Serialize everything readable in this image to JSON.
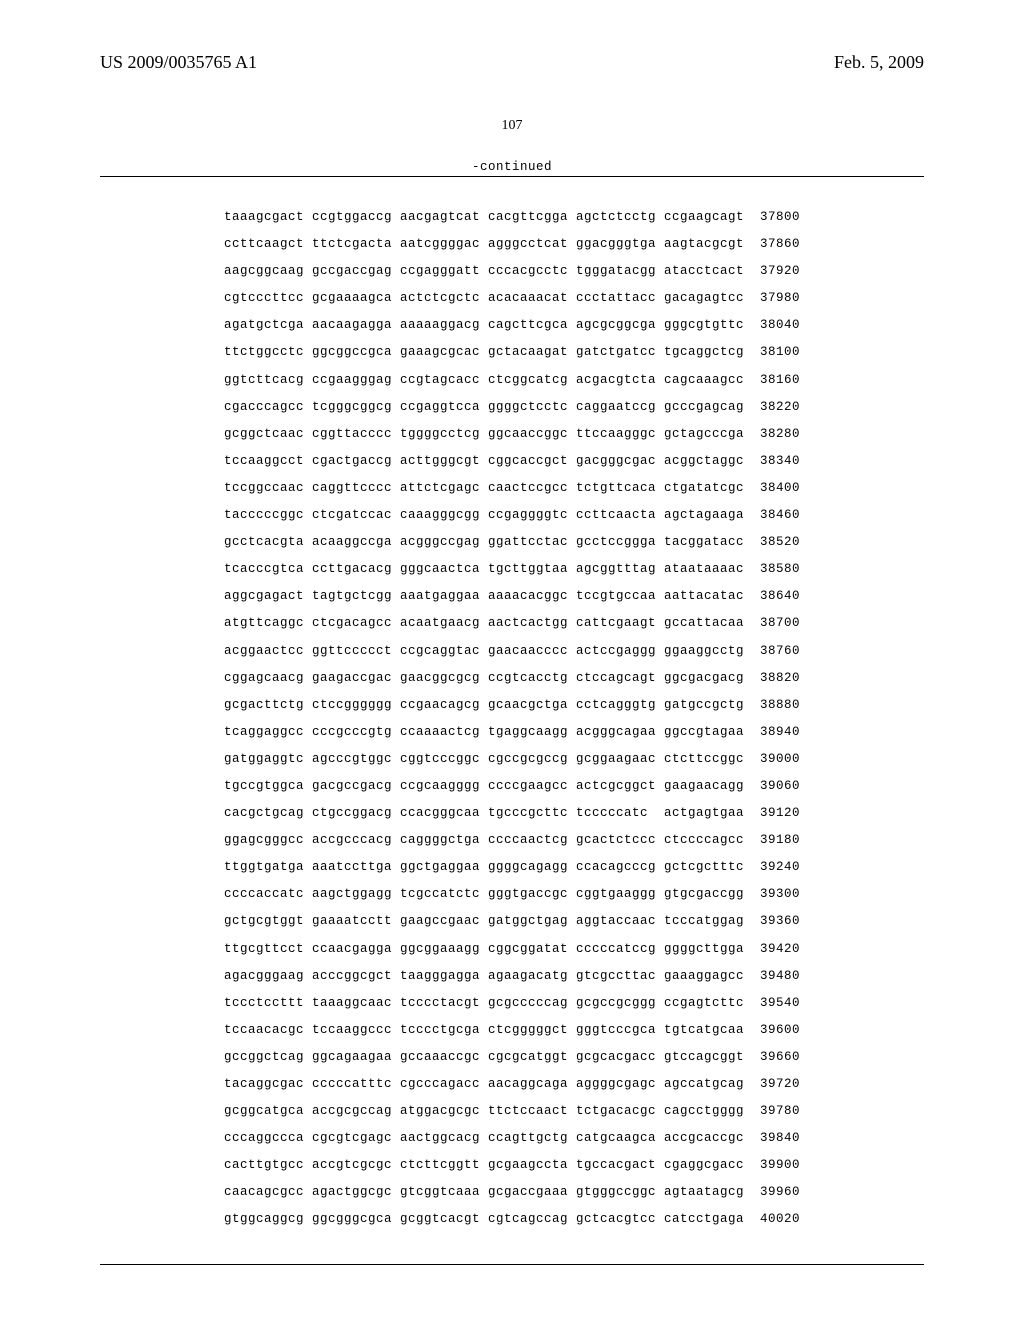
{
  "header": {
    "left": "US 2009/0035765 A1",
    "right": "Feb. 5, 2009"
  },
  "page_number": "107",
  "continued_label": "-continued",
  "sequence": {
    "font_family": "Courier New",
    "font_size_pt": 9,
    "color": "#000000",
    "lines": [
      {
        "groups": [
          "taaagcgact",
          "ccgtggaccg",
          "aacgagtcat",
          "cacgttcgga",
          "agctctcctg",
          "ccgaagcagt"
        ],
        "pos": "37800"
      },
      {
        "groups": [
          "ccttcaagct",
          "ttctcgacta",
          "aatcggggac",
          "agggcctcat",
          "ggacgggtga",
          "aagtacgcgt"
        ],
        "pos": "37860"
      },
      {
        "groups": [
          "aagcggcaag",
          "gccgaccgag",
          "ccgagggatt",
          "cccacgcctc",
          "tgggatacgg",
          "atacctcact"
        ],
        "pos": "37920"
      },
      {
        "groups": [
          "cgtcccttcc",
          "gcgaaaagca",
          "actctcgctc",
          "acacaaacat",
          "ccctattacc",
          "gacagagtcc"
        ],
        "pos": "37980"
      },
      {
        "groups": [
          "agatgctcga",
          "aacaagagga",
          "aaaaaggacg",
          "cagcttcgca",
          "agcgcggcga",
          "gggcgtgttc"
        ],
        "pos": "38040"
      },
      {
        "groups": [
          "ttctggcctc",
          "ggcggccgca",
          "gaaagcgcac",
          "gctacaagat",
          "gatctgatcc",
          "tgcaggctcg"
        ],
        "pos": "38100"
      },
      {
        "groups": [
          "ggtcttcacg",
          "ccgaagggag",
          "ccgtagcacc",
          "ctcggcatcg",
          "acgacgtcta",
          "cagcaaagcc"
        ],
        "pos": "38160"
      },
      {
        "groups": [
          "cgacccagcc",
          "tcgggcggcg",
          "ccgaggtcca",
          "ggggctcctc",
          "caggaatccg",
          "gcccgagcag"
        ],
        "pos": "38220"
      },
      {
        "groups": [
          "gcggctcaac",
          "cggttacccc",
          "tggggcctcg",
          "ggcaaccggc",
          "ttccaagggc",
          "gctagcccga"
        ],
        "pos": "38280"
      },
      {
        "groups": [
          "tccaaggcct",
          "cgactgaccg",
          "acttgggcgt",
          "cggcaccgct",
          "gacgggcgac",
          "acggctaggc"
        ],
        "pos": "38340"
      },
      {
        "groups": [
          "tccggccaac",
          "caggttcccc",
          "attctcgagc",
          "caactccgcc",
          "tctgttcaca",
          "ctgatatcgc"
        ],
        "pos": "38400"
      },
      {
        "groups": [
          "tacccccggc",
          "ctcgatccac",
          "caaagggcgg",
          "ccgaggggtc",
          "ccttcaacta",
          "agctagaaga"
        ],
        "pos": "38460"
      },
      {
        "groups": [
          "gcctcacgta",
          "acaaggccga",
          "acgggccgag",
          "ggattcctac",
          "gcctccggga",
          "tacggatacc"
        ],
        "pos": "38520"
      },
      {
        "groups": [
          "tcacccgtca",
          "ccttgacacg",
          "gggcaactca",
          "tgcttggtaa",
          "agcggtttag",
          "ataataaaac"
        ],
        "pos": "38580"
      },
      {
        "groups": [
          "aggcgagact",
          "tagtgctcgg",
          "aaatgaggaa",
          "aaaacacggc",
          "tccgtgccaa",
          "aattacatac"
        ],
        "pos": "38640"
      },
      {
        "groups": [
          "atgttcaggc",
          "ctcgacagcc",
          "acaatgaacg",
          "aactcactgg",
          "cattcgaagt",
          "gccattacaa"
        ],
        "pos": "38700"
      },
      {
        "groups": [
          "acggaactcc",
          "ggttccccct",
          "ccgcaggtac",
          "gaacaacccc",
          "actccgaggg",
          "ggaaggcctg"
        ],
        "pos": "38760"
      },
      {
        "groups": [
          "cggagcaacg",
          "gaagaccgac",
          "gaacggcgcg",
          "ccgtcacctg",
          "ctccagcagt",
          "ggcgacgacg"
        ],
        "pos": "38820"
      },
      {
        "groups": [
          "gcgacttctg",
          "ctccgggggg",
          "ccgaacagcg",
          "gcaacgctga",
          "cctcagggtg",
          "gatgccgctg"
        ],
        "pos": "38880"
      },
      {
        "groups": [
          "tcaggaggcc",
          "cccgcccgtg",
          "ccaaaactcg",
          "tgaggcaagg",
          "acgggcagaa",
          "ggccgtagaa"
        ],
        "pos": "38940"
      },
      {
        "groups": [
          "gatggaggtc",
          "agcccgtggc",
          "cggtcccggc",
          "cgccgcgccg",
          "gcggaagaac",
          "ctcttccggc"
        ],
        "pos": "39000"
      },
      {
        "groups": [
          "tgccgtggca",
          "gacgccgacg",
          "ccgcaagggg",
          "ccccgaagcc",
          "actcgcggct",
          "gaagaacagg"
        ],
        "pos": "39060"
      },
      {
        "groups": [
          "cacgctgcag",
          "ctgccggacg",
          "ccacgggcaa",
          "tgcccgcttc",
          "tcccccatc",
          "actgagtgaa"
        ],
        "pos": "39120"
      },
      {
        "groups": [
          "ggagcgggcc",
          "accgcccacg",
          "caggggctga",
          "ccccaactcg",
          "gcactctccc",
          "ctccccagcc"
        ],
        "pos": "39180"
      },
      {
        "groups": [
          "ttggtgatga",
          "aaatccttga",
          "ggctgaggaa",
          "ggggcagagg",
          "ccacagcccg",
          "gctcgctttc"
        ],
        "pos": "39240"
      },
      {
        "groups": [
          "ccccaccatc",
          "aagctggagg",
          "tcgccatctc",
          "gggtgaccgc",
          "cggtgaaggg",
          "gtgcgaccgg"
        ],
        "pos": "39300"
      },
      {
        "groups": [
          "gctgcgtggt",
          "gaaaatcctt",
          "gaagccgaac",
          "gatggctgag",
          "aggtaccaac",
          "tcccatggag"
        ],
        "pos": "39360"
      },
      {
        "groups": [
          "ttgcgttcct",
          "ccaacgagga",
          "ggcggaaagg",
          "cggcggatat",
          "cccccatccg",
          "ggggcttgga"
        ],
        "pos": "39420"
      },
      {
        "groups": [
          "agacgggaag",
          "acccggcgct",
          "taagggagga",
          "agaagacatg",
          "gtcgccttac",
          "gaaaggagcc"
        ],
        "pos": "39480"
      },
      {
        "groups": [
          "tccctccttt",
          "taaaggcaac",
          "tcccctacgt",
          "gcgcccccag",
          "gcgccgcggg",
          "ccgagtcttc"
        ],
        "pos": "39540"
      },
      {
        "groups": [
          "tccaacacgc",
          "tccaaggccc",
          "tcccctgcga",
          "ctcgggggct",
          "gggtcccgca",
          "tgtcatgcaa"
        ],
        "pos": "39600"
      },
      {
        "groups": [
          "gccggctcag",
          "ggcagaagaa",
          "gccaaaccgc",
          "cgcgcatggt",
          "gcgcacgacc",
          "gtccagcggt"
        ],
        "pos": "39660"
      },
      {
        "groups": [
          "tacaggcgac",
          "cccccatttc",
          "cgcccagacc",
          "aacaggcaga",
          "aggggcgagc",
          "agccatgcag"
        ],
        "pos": "39720"
      },
      {
        "groups": [
          "gcggcatgca",
          "accgcgccag",
          "atggacgcgc",
          "ttctccaact",
          "tctgacacgc",
          "cagcctgggg"
        ],
        "pos": "39780"
      },
      {
        "groups": [
          "cccaggccca",
          "cgcgtcgagc",
          "aactggcacg",
          "ccagttgctg",
          "catgcaagca",
          "accgcaccgc"
        ],
        "pos": "39840"
      },
      {
        "groups": [
          "cacttgtgcc",
          "accgtcgcgc",
          "ctcttcggtt",
          "gcgaagccta",
          "tgccacgact",
          "cgaggcgacc"
        ],
        "pos": "39900"
      },
      {
        "groups": [
          "caacagcgcc",
          "agactggcgc",
          "gtcggtcaaa",
          "gcgaccgaaa",
          "gtgggccggc",
          "agtaatagcg"
        ],
        "pos": "39960"
      },
      {
        "groups": [
          "gtggcaggcg",
          "ggcgggcgca",
          "gcggtcacgt",
          "cgtcagccag",
          "gctcacgtcc",
          "catcctgaga"
        ],
        "pos": "40020"
      }
    ]
  }
}
